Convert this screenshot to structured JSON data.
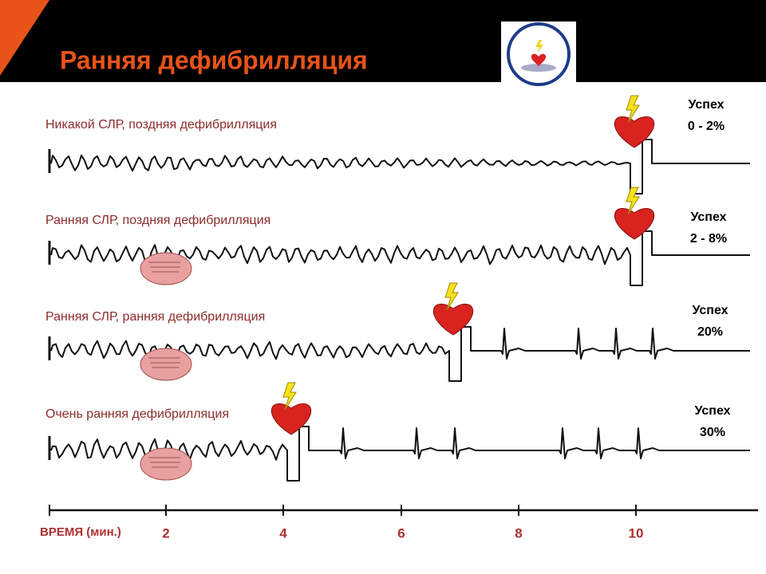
{
  "header": {
    "title": "Ранняя дефибрилляция"
  },
  "rows": [
    {
      "label": "Никакой СЛР, поздняя дефибрилляция",
      "result_label": "Успех",
      "result_value": "0 - 2%"
    },
    {
      "label": "Ранняя СЛР, поздняя дефибрилляция",
      "result_label": "Успех",
      "result_value": "2 - 8%"
    },
    {
      "label": "Ранняя СЛР, ранняя дефибрилляция",
      "result_label": "Успех",
      "result_value": "20%"
    },
    {
      "label": "Очень ранняя дефибрилляция",
      "result_label": "Успех",
      "result_value": "30%"
    }
  ],
  "time_axis": {
    "label": "ВРЕМЯ (мин.)",
    "ticks": [
      "2",
      "4",
      "6",
      "8",
      "10"
    ]
  }
}
